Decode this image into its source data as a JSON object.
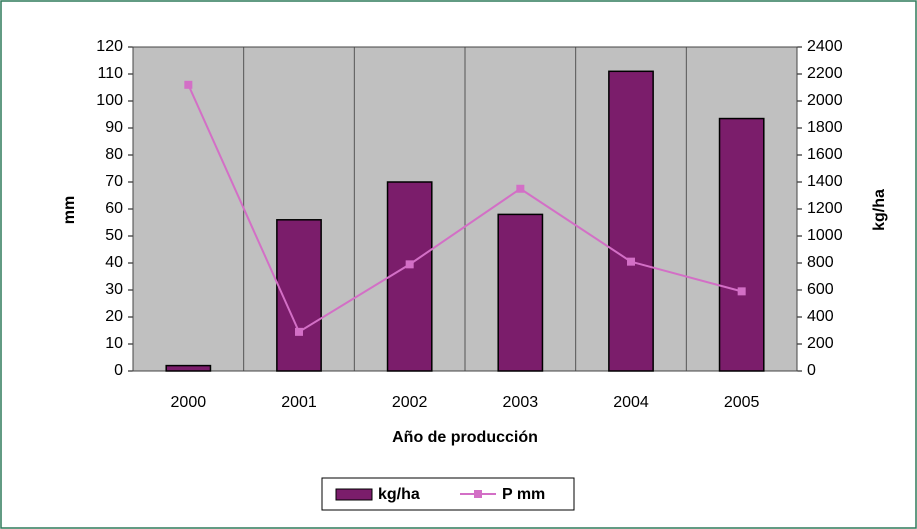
{
  "chart_data": {
    "type": "bar-line",
    "categories": [
      "2000",
      "2001",
      "2002",
      "2003",
      "2004",
      "2005"
    ],
    "series": [
      {
        "name": "kg/ha",
        "type": "bar",
        "axis": "y2",
        "color": "#7b1d6b",
        "values": [
          40,
          1120,
          1400,
          1160,
          2220,
          1870
        ]
      },
      {
        "name": "P mm",
        "type": "line",
        "axis": "y",
        "color": "#d36fc6",
        "values": [
          106,
          14.5,
          39.5,
          67.5,
          40.5,
          29.5
        ]
      }
    ],
    "ylabel": "mm",
    "y2label": "kg/ha",
    "xlabel": "Año de producción",
    "ylim": [
      0,
      120
    ],
    "yticks": [
      0,
      10,
      20,
      30,
      40,
      50,
      60,
      70,
      80,
      90,
      100,
      110,
      120
    ],
    "y2lim": [
      0,
      2400
    ],
    "y2ticks": [
      0,
      200,
      400,
      600,
      800,
      1000,
      1200,
      1400,
      1600,
      1800,
      2000,
      2200,
      2400
    ],
    "legend": "bottom"
  }
}
